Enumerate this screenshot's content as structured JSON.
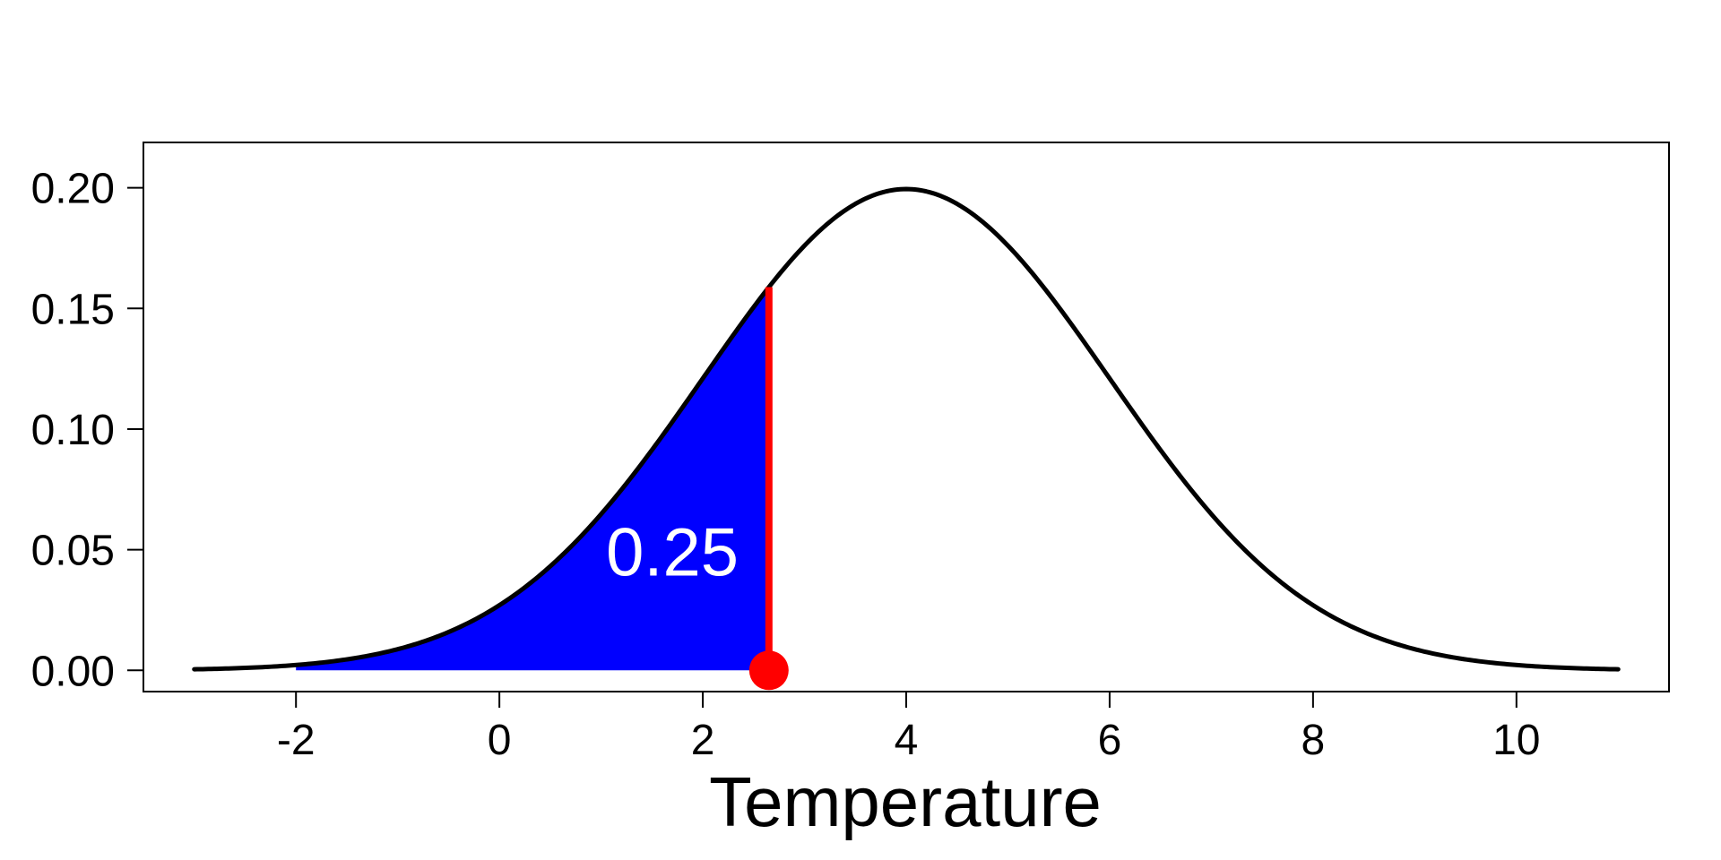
{
  "chart_data": {
    "type": "line",
    "title": "",
    "xlabel": "Temperature",
    "ylabel": "",
    "distribution": {
      "kind": "normal",
      "mean": 4,
      "sd": 2
    },
    "xlim": [
      -3.5,
      11.5
    ],
    "ylim": [
      -0.0088,
      0.2188
    ],
    "curve_x_range": [
      -3,
      11
    ],
    "x_ticks": [
      -2,
      0,
      2,
      4,
      6,
      8,
      10
    ],
    "x_tick_labels": [
      "-2",
      "0",
      "2",
      "4",
      "6",
      "8",
      "10"
    ],
    "y_ticks": [
      0,
      0.05,
      0.1,
      0.15,
      0.2
    ],
    "y_tick_labels": [
      "0.00",
      "0.05",
      "0.10",
      "0.15",
      "0.20"
    ],
    "shaded_region": {
      "from": -2,
      "to": 2.65,
      "area": 0.25,
      "color": "#0000ff"
    },
    "marker": {
      "x": 2.65,
      "y": 0,
      "color": "#ff0000"
    },
    "annotation": {
      "text": "0.25",
      "x": 1.7,
      "y": 0.049
    },
    "curve_color": "#000000",
    "grid": false,
    "legend": "none"
  }
}
